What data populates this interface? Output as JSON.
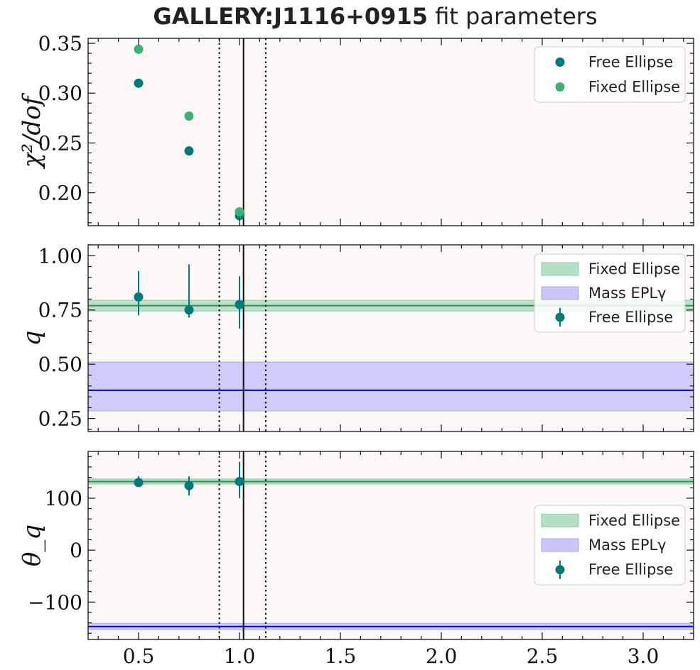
{
  "title": {
    "bold": "GALLERY:J1116+0915",
    "rest": " fit parameters"
  },
  "colors": {
    "free": "#007b7b",
    "fixed": "#3cb371",
    "mass": "#0000dd",
    "mass_band": "#c9c6f7",
    "fixed_band": "#b3dfc2",
    "panel_bg": "#fcf8f7"
  },
  "chart_data": [
    {
      "type": "scatter",
      "ylabel": "χ²/dof",
      "xlim": [
        0.25,
        3.25
      ],
      "ylim": [
        0.167,
        0.355
      ],
      "yticks": [
        0.2,
        0.25,
        0.3,
        0.35
      ],
      "ytick_labels": [
        "0.20",
        "0.25",
        "0.30",
        "0.35"
      ],
      "vlines": {
        "solid": 1.02,
        "dotted": [
          0.9,
          1.13
        ]
      },
      "series": [
        {
          "name": "Free Ellipse",
          "color_key": "free",
          "x": [
            0.5,
            0.75,
            1.0
          ],
          "y": [
            0.31,
            0.242,
            0.177
          ]
        },
        {
          "name": "Fixed Ellipse",
          "color_key": "fixed",
          "x": [
            0.5,
            0.75,
            1.0
          ],
          "y": [
            0.344,
            0.277,
            0.181
          ]
        }
      ],
      "legend": {
        "placement": "top-right",
        "entries": [
          "Free Ellipse",
          "Fixed Ellipse"
        ]
      }
    },
    {
      "type": "scatter",
      "ylabel": "q",
      "xlim": [
        0.25,
        3.25
      ],
      "ylim": [
        0.19,
        1.05
      ],
      "yticks": [
        0.25,
        0.5,
        0.75,
        1.0
      ],
      "ytick_labels": [
        "0.25",
        "0.50",
        "0.75",
        "1.00"
      ],
      "vlines": {
        "solid": 1.02,
        "dotted": [
          0.9,
          1.13
        ]
      },
      "bands": [
        {
          "name": "Fixed Ellipse",
          "color_key": "fixed",
          "center": 0.77,
          "low": 0.745,
          "high": 0.795
        },
        {
          "name": "Mass EPLγ",
          "color_key": "mass",
          "center": 0.38,
          "low": 0.285,
          "high": 0.51
        }
      ],
      "series": [
        {
          "name": "Free Ellipse",
          "color_key": "free",
          "x": [
            0.5,
            0.75,
            1.0
          ],
          "y": [
            0.81,
            0.75,
            0.775
          ],
          "yerr_low": [
            0.085,
            0.035,
            0.11
          ],
          "yerr_high": [
            0.12,
            0.21,
            0.13
          ]
        }
      ],
      "legend": {
        "placement": "top-right",
        "entries": [
          "Fixed Ellipse",
          "Mass EPLγ",
          "Free Ellipse"
        ]
      }
    },
    {
      "type": "scatter",
      "ylabel": "θ_q",
      "xlim": [
        0.25,
        3.25
      ],
      "ylim": [
        -172,
        190
      ],
      "yticks": [
        -100,
        0,
        100
      ],
      "ytick_labels": [
        "−100",
        "0",
        "100"
      ],
      "xticks": [
        0.5,
        1.0,
        1.5,
        2.0,
        2.5,
        3.0
      ],
      "xtick_labels": [
        "0.5",
        "1.0",
        "1.5",
        "2.0",
        "2.5",
        "3.0"
      ],
      "vlines": {
        "solid": 1.02,
        "dotted": [
          0.9,
          1.13
        ]
      },
      "bands": [
        {
          "name": "Fixed Ellipse",
          "color_key": "fixed",
          "center": 132,
          "low": 127,
          "high": 137
        },
        {
          "name": "Mass EPLγ",
          "color_key": "mass",
          "center": -147,
          "low": -153,
          "high": -141
        }
      ],
      "series": [
        {
          "name": "Free Ellipse",
          "color_key": "free",
          "x": [
            0.5,
            0.75,
            1.0
          ],
          "y": [
            130,
            124,
            132
          ],
          "yerr_low": [
            8,
            19,
            32
          ],
          "yerr_high": [
            12,
            18,
            38
          ]
        }
      ],
      "legend": {
        "placement": "center-right",
        "entries": [
          "Fixed Ellipse",
          "Mass EPLγ",
          "Free Ellipse"
        ]
      }
    }
  ]
}
